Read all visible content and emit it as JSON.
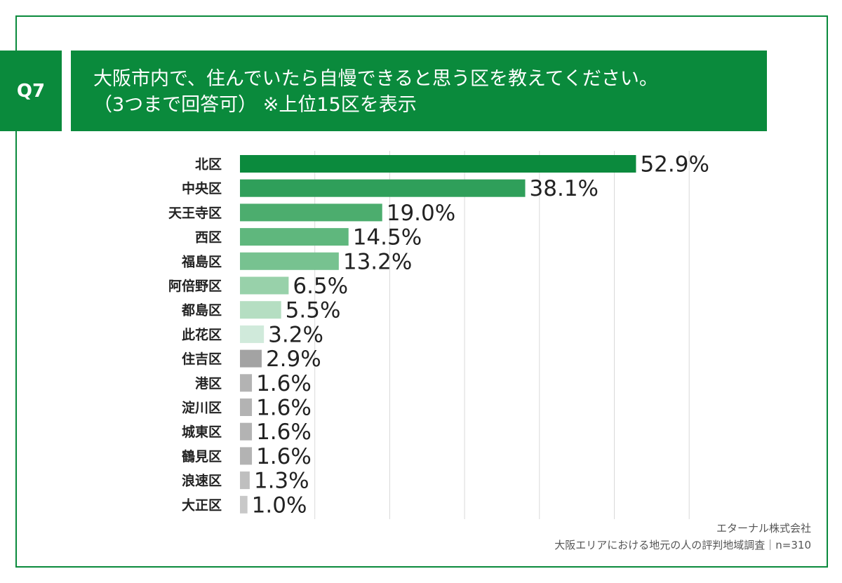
{
  "question": {
    "tag": "Q7",
    "title_line1": "大阪市内で、住んでいたら自慢できると思う区を教えてください。",
    "title_line2": "（3つまで回答可） ※上位15区を表示"
  },
  "credit": {
    "company": "エターナル株式会社",
    "survey": "大阪エリアにおける地元の人の評判地域調査｜n=310"
  },
  "colors": {
    "brand": "#0a8a3c",
    "gridline": "#d9d9d9",
    "label_text": "#222222"
  },
  "chart_data": {
    "type": "bar",
    "orientation": "horizontal",
    "categories": [
      "北区",
      "中央区",
      "天王寺区",
      "西区",
      "福島区",
      "阿倍野区",
      "都島区",
      "此花区",
      "住吉区",
      "港区",
      "淀川区",
      "城東区",
      "鶴見区",
      "浪速区",
      "大正区"
    ],
    "values": [
      52.9,
      38.1,
      19.0,
      14.5,
      13.2,
      6.5,
      5.5,
      3.2,
      2.9,
      1.6,
      1.6,
      1.6,
      1.6,
      1.3,
      1.0
    ],
    "value_labels": [
      "52.9%",
      "38.1%",
      "19.0%",
      "14.5%",
      "13.2%",
      "6.5%",
      "5.5%",
      "3.2%",
      "2.9%",
      "1.6%",
      "1.6%",
      "1.6%",
      "1.6%",
      "1.3%",
      "1.0%"
    ],
    "bar_colors": [
      "#0b8a3d",
      "#2f9f5a",
      "#4cad6e",
      "#5fb77d",
      "#77c290",
      "#98d1aa",
      "#b5dec2",
      "#d0eadb",
      "#a3a3a3",
      "#b3b3b3",
      "#b3b3b3",
      "#b3b3b3",
      "#b3b3b3",
      "#bfbfbf",
      "#c8c8c8"
    ],
    "xlim": [
      0,
      60
    ],
    "grid": true,
    "unit": "%"
  }
}
